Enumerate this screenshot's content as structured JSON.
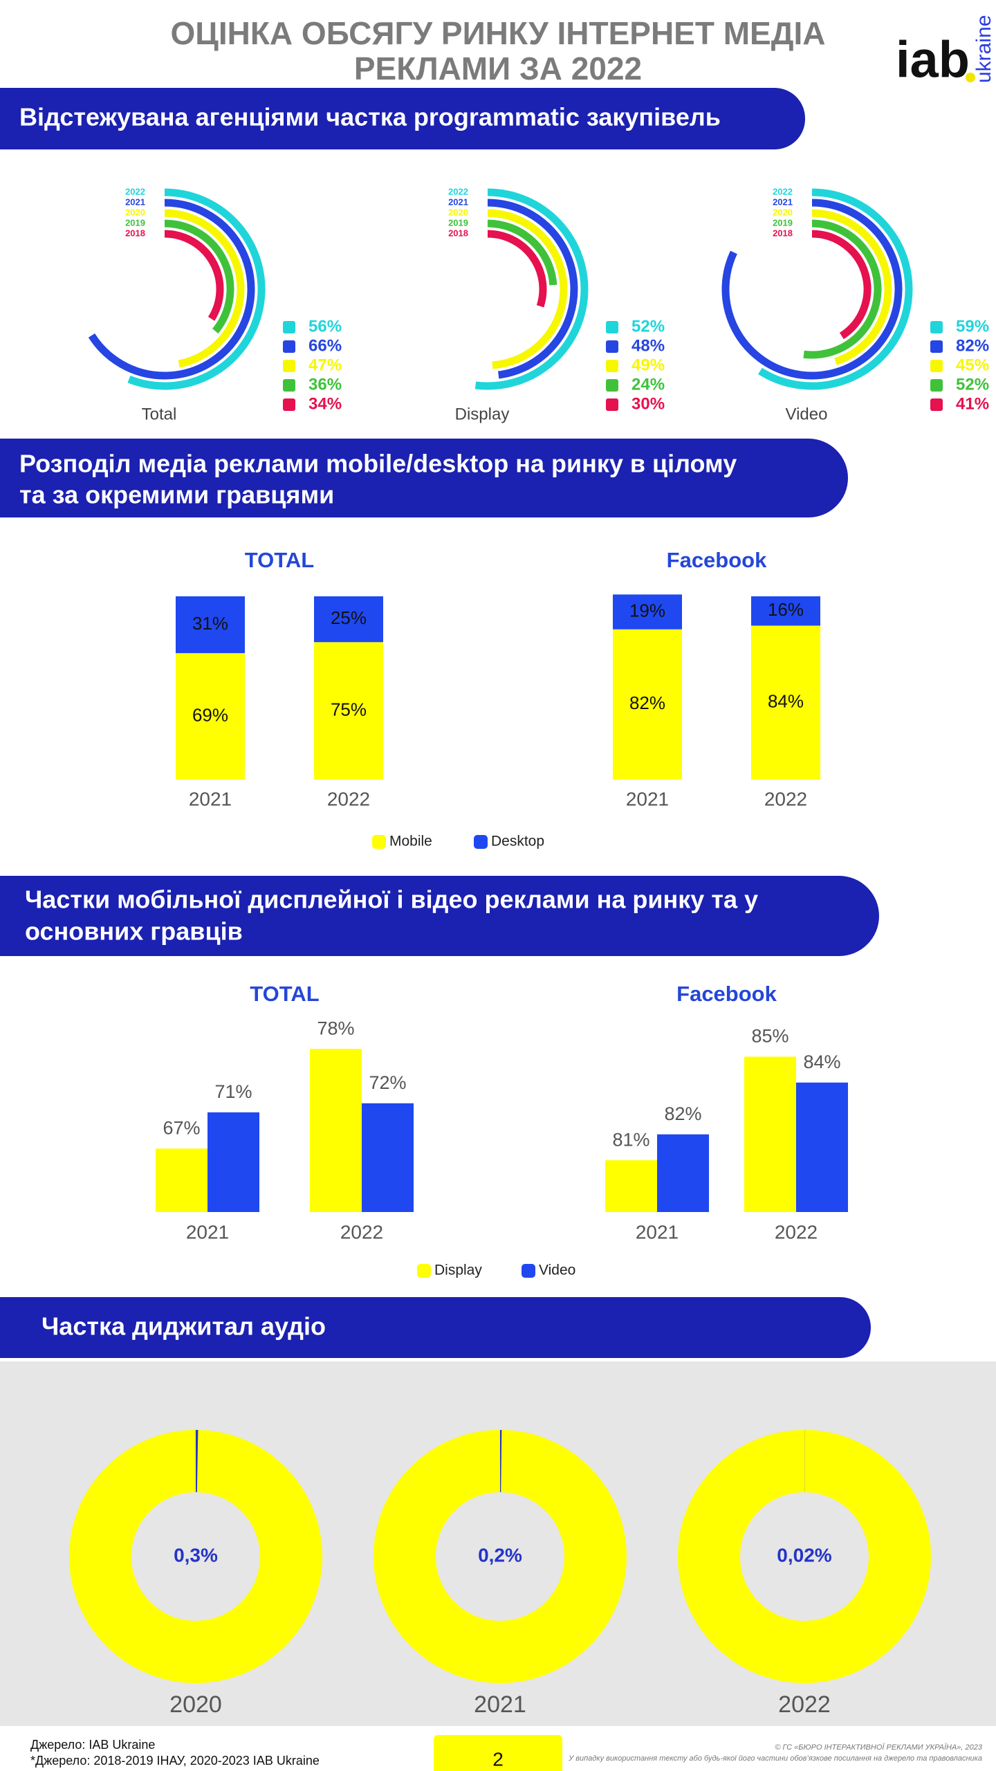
{
  "header": {
    "title_lines": [
      "ОЦІНКА ОБСЯГУ РИНКУ ІНТЕРНЕТ МЕДІА",
      "РЕКЛАМИ ЗА 2022"
    ],
    "logo": "iab",
    "logo_sub": "ukraine"
  },
  "sections": [
    {
      "lines": [
        "Відстежувана агенціями частка programmatic закупівель"
      ]
    },
    {
      "lines": [
        "Розподіл медіа реклами mobile/desktop на ринку в цілому",
        "та за окремими гравцями"
      ]
    },
    {
      "lines": [
        "Частки мобільної дисплейної і відео реклами на ринку та у",
        "основних гравців"
      ]
    },
    {
      "lines": [
        "Частка диджитал аудіо"
      ]
    }
  ],
  "chart_data": [
    {
      "type": "radial_bar",
      "label": "Total",
      "ylim": [
        0,
        100
      ],
      "categories": [
        "2022",
        "2021",
        "2020",
        "2019",
        "2018"
      ],
      "colors": [
        "#1fd5da",
        "#2645e2",
        "#f7f700",
        "#3fc23a",
        "#e6114f"
      ],
      "values": [
        56,
        66,
        47,
        36,
        34
      ],
      "value_labels": [
        "56%",
        "66%",
        "47%",
        "36%",
        "34%"
      ]
    },
    {
      "type": "radial_bar",
      "label": "Display",
      "ylim": [
        0,
        100
      ],
      "categories": [
        "2022",
        "2021",
        "2020",
        "2019",
        "2018"
      ],
      "colors": [
        "#1fd5da",
        "#2645e2",
        "#f7f700",
        "#3fc23a",
        "#e6114f"
      ],
      "values": [
        52,
        48,
        49,
        24,
        30
      ],
      "value_labels": [
        "52%",
        "48%",
        "49%",
        "24%",
        "30%"
      ]
    },
    {
      "type": "radial_bar",
      "label": "Video",
      "ylim": [
        0,
        100
      ],
      "categories": [
        "2022",
        "2021",
        "2020",
        "2019",
        "2018"
      ],
      "colors": [
        "#1fd5da",
        "#2645e2",
        "#f7f700",
        "#3fc23a",
        "#e6114f"
      ],
      "values": [
        59,
        82,
        45,
        52,
        41
      ],
      "value_labels": [
        "59%",
        "82%",
        "45%",
        "52%",
        "41%"
      ]
    },
    {
      "type": "stacked_bar",
      "ylim": [
        0,
        100
      ],
      "series": [
        {
          "name": "Mobile",
          "color": "#ffff00"
        },
        {
          "name": "Desktop",
          "color": "#1f48f0"
        }
      ],
      "panels": [
        {
          "title": "TOTAL",
          "categories": [
            "2021",
            "2022"
          ],
          "series": [
            {
              "values": [
                69,
                75
              ],
              "value_labels": [
                "69%",
                "75%"
              ]
            },
            {
              "values": [
                31,
                25
              ],
              "value_labels": [
                "31%",
                "25%"
              ]
            }
          ]
        },
        {
          "title": "Facebook",
          "categories": [
            "2021",
            "2022"
          ],
          "series": [
            {
              "values": [
                82,
                84
              ],
              "value_labels": [
                "82%",
                "84%"
              ]
            },
            {
              "values": [
                19,
                16
              ],
              "value_labels": [
                "19%",
                "16%"
              ]
            }
          ]
        }
      ]
    },
    {
      "type": "grouped_bar",
      "series": [
        {
          "name": "Display",
          "color": "#ffff00"
        },
        {
          "name": "Video",
          "color": "#1f48f0"
        }
      ],
      "panels": [
        {
          "title": "TOTAL",
          "ylim": [
            60,
            80
          ],
          "categories": [
            "2021",
            "2022"
          ],
          "series": [
            {
              "values": [
                67,
                78
              ],
              "value_labels": [
                "67%",
                "78%"
              ]
            },
            {
              "values": [
                71,
                72
              ],
              "value_labels": [
                "71%",
                "72%"
              ]
            }
          ]
        },
        {
          "title": "Facebook",
          "ylim": [
            79,
            86
          ],
          "categories": [
            "2021",
            "2022"
          ],
          "series": [
            {
              "values": [
                81,
                85
              ],
              "value_labels": [
                "81%",
                "85%"
              ]
            },
            {
              "values": [
                82,
                84
              ],
              "value_labels": [
                "82%",
                "84%"
              ]
            }
          ]
        }
      ]
    },
    {
      "type": "donut",
      "ylim": [
        0,
        100
      ],
      "color": "#2433c8",
      "ring_color": "#ffff00",
      "categories": [
        "2020",
        "2021",
        "2022"
      ],
      "values": [
        0.3,
        0.2,
        0.02
      ],
      "value_labels": [
        "0,3%",
        "0,2%",
        "0,02%"
      ]
    }
  ],
  "footer": {
    "sources": [
      "Джерело: IAB Ukraine",
      "*Джерело: 2018-2019 ІНАУ, 2020-2023 IAB Ukraine"
    ],
    "page_number": 2,
    "copyright": "© ГС «БЮРО ІНТЕРАКТИВНОЇ РЕКЛАМИ УКРАЇНА», 2023",
    "notice": "У випадку використання тексту або будь-якої його частини обов’язкове посилання на джерело та правовласника"
  }
}
